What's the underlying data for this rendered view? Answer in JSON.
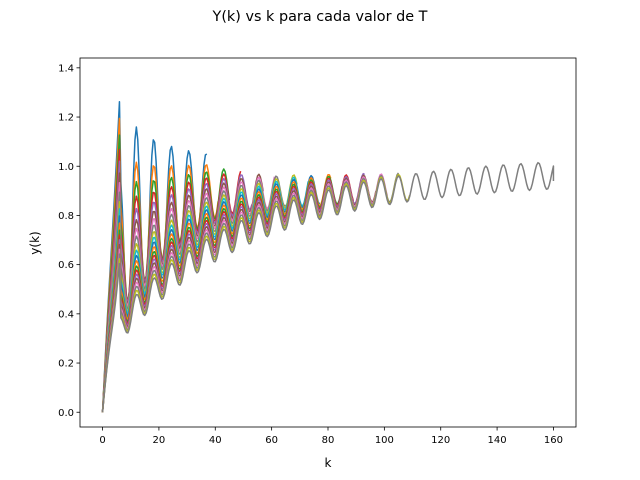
{
  "chart_data": {
    "type": "line",
    "title": "Y(k) vs k para cada valor de T",
    "xlabel": "k",
    "ylabel": "y(k)",
    "xlim": [
      -8,
      168
    ],
    "ylim": [
      -0.06,
      1.44
    ],
    "xticks": [
      0,
      20,
      40,
      60,
      80,
      100,
      120,
      140,
      160
    ],
    "xtick_labels": [
      "0",
      "20",
      "40",
      "60",
      "80",
      "100",
      "120",
      "140",
      "160"
    ],
    "yticks": [
      0.0,
      0.2,
      0.4,
      0.6,
      0.8,
      1.0,
      1.2,
      1.4
    ],
    "ytick_labels": [
      "0.0",
      "0.2",
      "0.4",
      "0.6",
      "0.8",
      "1.0",
      "1.2",
      "1.4"
    ],
    "grid": false,
    "legend": false,
    "series_count": 20,
    "series_colors": [
      "#1f77b4",
      "#ff7f0e",
      "#2ca02c",
      "#d62728",
      "#9467bd",
      "#8c564b",
      "#e377c2",
      "#7f7f7f",
      "#bcbd22",
      "#17becf",
      "#1f77b4",
      "#ff7f0e",
      "#2ca02c",
      "#d62728",
      "#9467bd",
      "#8c564b",
      "#e377c2",
      "#7f7f7f",
      "#bcbd22",
      "#7f7f7f"
    ],
    "series_k_end": [
      37,
      41,
      45,
      49,
      53,
      57,
      61,
      65,
      69,
      73,
      77,
      81,
      85,
      89,
      93,
      97,
      101,
      105,
      109,
      160
    ],
    "series_first_peak": [
      1.31,
      1.24,
      1.17,
      1.11,
      1.06,
      1.01,
      0.97,
      0.93,
      0.89,
      0.86,
      0.83,
      0.8,
      0.77,
      0.75,
      0.73,
      0.71,
      0.69,
      0.67,
      0.65,
      0.63
    ],
    "series_max": [
      1.375,
      1.265,
      1.22,
      1.19,
      1.165,
      1.145,
      1.13,
      1.12,
      1.11,
      1.1,
      1.095,
      1.09,
      1.085,
      1.08,
      1.075,
      1.07,
      1.065,
      1.06,
      1.055,
      1.05
    ],
    "oscillation_period_k": 6.2,
    "steady_state_value": 0.99,
    "final_point": [
      160,
      0.94
    ]
  }
}
